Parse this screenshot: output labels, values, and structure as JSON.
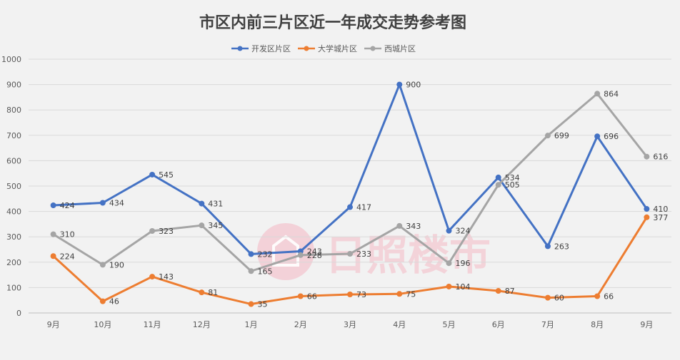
{
  "chart_data": {
    "type": "line",
    "title": "市区内前三片区近一年成交走势参考图",
    "categories": [
      "9月",
      "10月",
      "11月",
      "12月",
      "1月",
      "2月",
      "3月",
      "4月",
      "5月",
      "6月",
      "7月",
      "8月",
      "9月"
    ],
    "series": [
      {
        "name": "开发区片区",
        "color": "#4472c4",
        "values": [
          424,
          434,
          545,
          431,
          232,
          243,
          417,
          900,
          324,
          534,
          263,
          696,
          410
        ]
      },
      {
        "name": "大学城片区",
        "color": "#ed7d31",
        "values": [
          224,
          46,
          143,
          81,
          35,
          66,
          73,
          75,
          104,
          87,
          60,
          66,
          377
        ]
      },
      {
        "name": "西城片区",
        "color": "#a5a5a5",
        "values": [
          310,
          190,
          323,
          345,
          165,
          228,
          233,
          343,
          196,
          505,
          699,
          864,
          616
        ]
      }
    ],
    "ylim": [
      0,
      1000
    ],
    "yticks": [
      0,
      100,
      200,
      300,
      400,
      500,
      600,
      700,
      800,
      900,
      1000
    ],
    "grid": true,
    "legend_position": "top-center",
    "watermark": "日照楼市"
  }
}
